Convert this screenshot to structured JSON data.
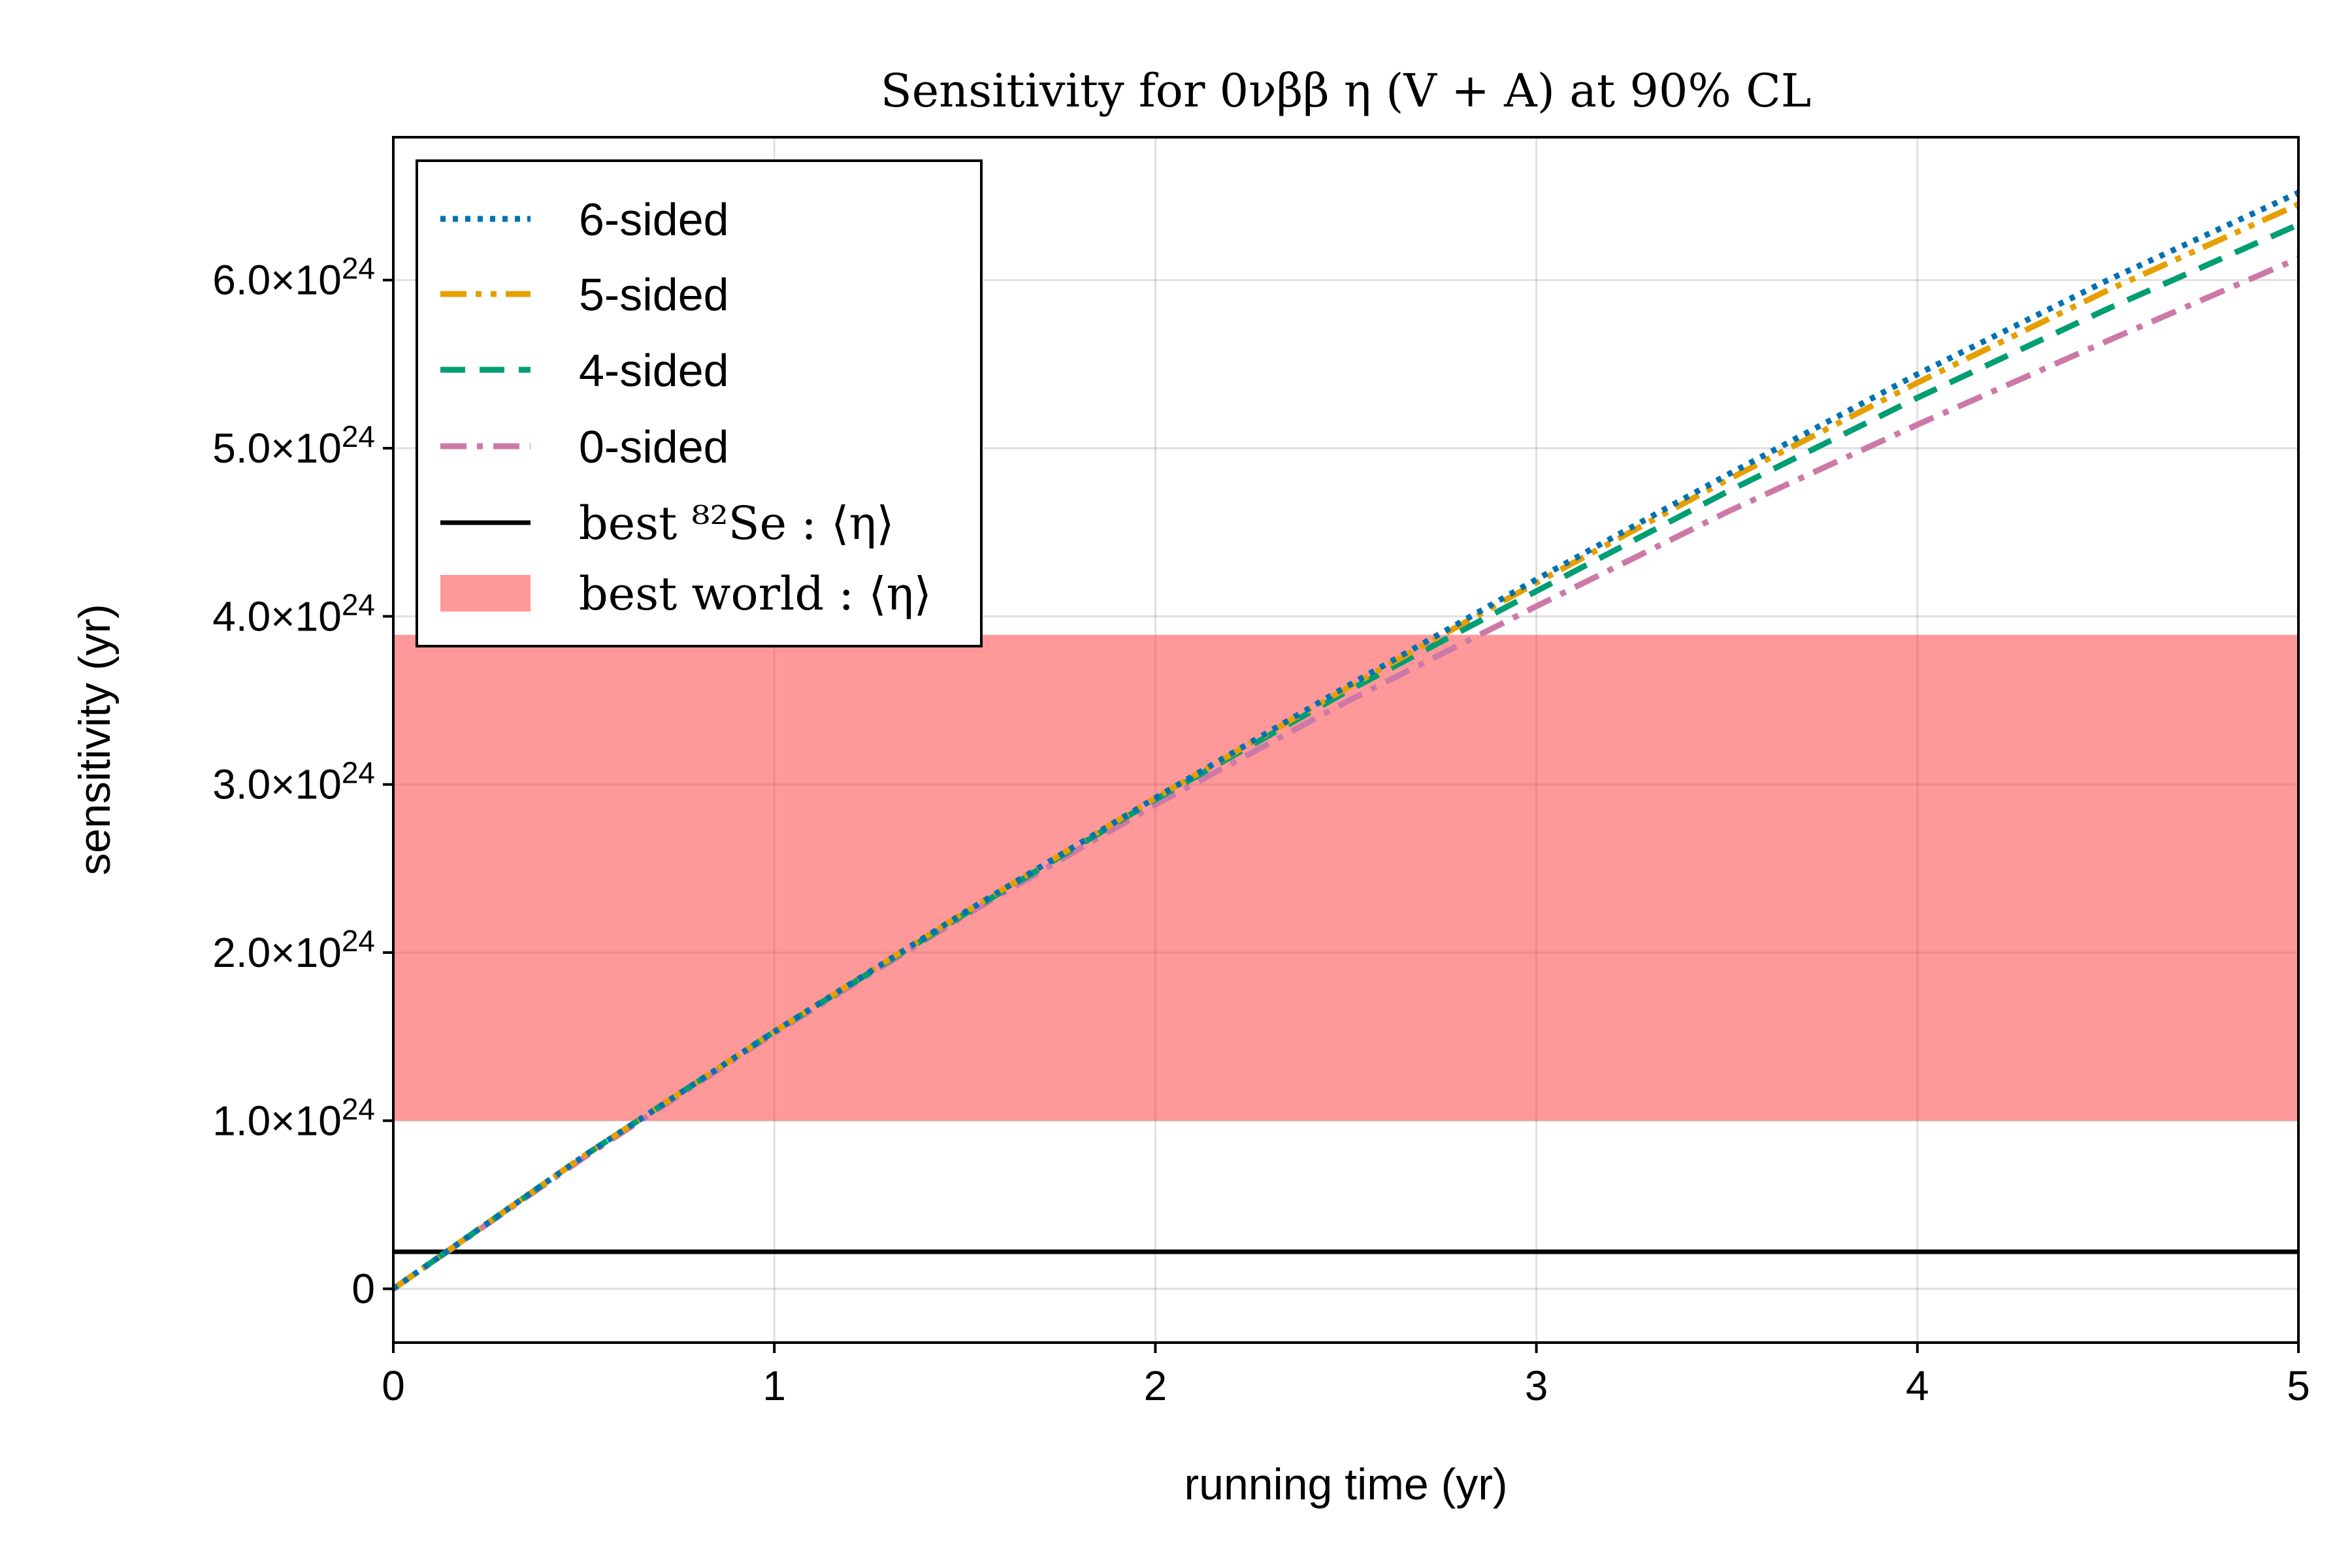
{
  "chart_data": {
    "type": "line",
    "title": "Sensitivity for 0νββ η (V + A) at 90% CL",
    "xlabel": "running time (yr)",
    "ylabel": "sensitivity (yr)",
    "xlim": [
      0,
      5
    ],
    "ylim": [
      -3.2e+23,
      6.85e+24
    ],
    "x_ticks": [
      {
        "value": 0,
        "label": "0"
      },
      {
        "value": 1,
        "label": "1"
      },
      {
        "value": 2,
        "label": "2"
      },
      {
        "value": 3,
        "label": "3"
      },
      {
        "value": 4,
        "label": "4"
      },
      {
        "value": 5,
        "label": "5"
      }
    ],
    "y_ticks": [
      {
        "value": 0,
        "label": "0",
        "exp": ""
      },
      {
        "value": 1e+24,
        "label": "1.0×10",
        "exp": "24"
      },
      {
        "value": 2e+24,
        "label": "2.0×10",
        "exp": "24"
      },
      {
        "value": 3e+24,
        "label": "3.0×10",
        "exp": "24"
      },
      {
        "value": 4e+24,
        "label": "4.0×10",
        "exp": "24"
      },
      {
        "value": 5e+24,
        "label": "5.0×10",
        "exp": "24"
      },
      {
        "value": 6e+24,
        "label": "6.0×10",
        "exp": "24"
      }
    ],
    "grid": true,
    "legend_position": "top-left",
    "x": [
      0,
      0.5,
      1,
      1.5,
      2,
      2.5,
      3,
      3.5,
      4,
      4.5,
      5
    ],
    "series": [
      {
        "name": "6-sided",
        "color": "#0072b2",
        "dash": "dotted",
        "values": [
          0,
          7.9e+23,
          1.53e+24,
          2.24e+24,
          2.92e+24,
          3.58e+24,
          4.22e+24,
          4.84e+24,
          5.44e+24,
          6e+24,
          6.52e+24
        ]
      },
      {
        "name": "5-sided",
        "color": "#e69f00",
        "dash": "dashdotdot",
        "values": [
          0,
          7.9e+23,
          1.53e+24,
          2.24e+24,
          2.92e+24,
          3.57e+24,
          4.2e+24,
          4.81e+24,
          5.39e+24,
          5.94e+24,
          6.45e+24
        ]
      },
      {
        "name": "4-sided",
        "color": "#009e73",
        "dash": "dashed",
        "values": [
          0,
          7.9e+23,
          1.53e+24,
          2.23e+24,
          2.91e+24,
          3.55e+24,
          4.15e+24,
          4.74e+24,
          5.3e+24,
          5.83e+24,
          6.33e+24
        ]
      },
      {
        "name": "0-sided",
        "color": "#cc79a7",
        "dash": "dashdot",
        "values": [
          0,
          7.8e+23,
          1.52e+24,
          2.22e+24,
          2.88e+24,
          3.49e+24,
          4.06e+24,
          4.62e+24,
          5.14e+24,
          5.64e+24,
          6.13e+24
        ]
      }
    ],
    "reference_line": {
      "label": "best ⁸²Se : ⟨η⟩",
      "value": 2.2e+23,
      "color": "#000000"
    },
    "band": {
      "label": "best world : ⟨η⟩",
      "low": 1e+24,
      "high": 3.89e+24,
      "color": "#ff3b3b",
      "opacity": 0.52
    }
  }
}
